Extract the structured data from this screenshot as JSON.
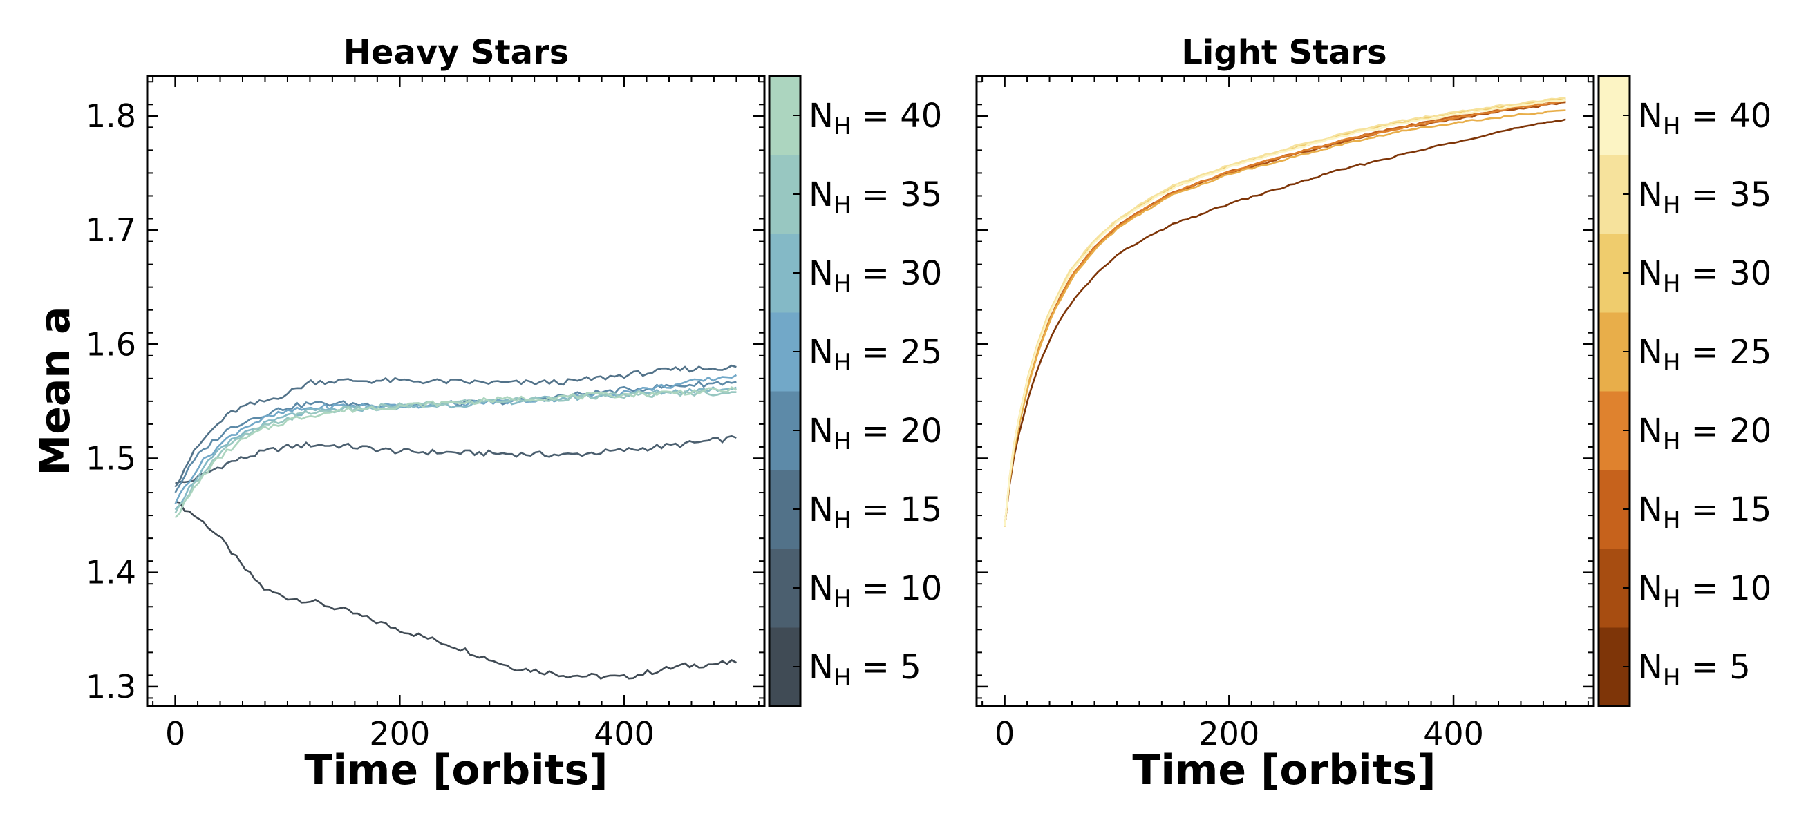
{
  "chart_data": [
    {
      "type": "line",
      "title": "Heavy Stars",
      "xlabel": "Time [orbits]",
      "ylabel": "Mean a",
      "xlim": [
        -25,
        525
      ],
      "ylim": [
        1.283,
        1.835
      ],
      "xticks": [
        0,
        200,
        400
      ],
      "yticks": [
        1.3,
        1.4,
        1.5,
        1.6,
        1.7,
        1.8
      ],
      "ytick_labels": [
        "1.3",
        "1.4",
        "1.5",
        "1.6",
        "1.7",
        "1.8"
      ],
      "x": [
        0,
        10,
        20,
        30,
        40,
        50,
        60,
        80,
        100,
        120,
        150,
        200,
        250,
        300,
        350,
        400,
        450,
        500
      ],
      "series": [
        {
          "name": "N_H = 5",
          "color": "#404b55",
          "values": [
            1.462,
            1.455,
            1.448,
            1.44,
            1.43,
            1.418,
            1.405,
            1.385,
            1.378,
            1.375,
            1.367,
            1.35,
            1.335,
            1.317,
            1.31,
            1.308,
            1.318,
            1.321
          ]
        },
        {
          "name": "N_H = 10",
          "color": "#4b5f6f",
          "values": [
            1.478,
            1.479,
            1.483,
            1.488,
            1.493,
            1.497,
            1.5,
            1.506,
            1.51,
            1.512,
            1.511,
            1.506,
            1.505,
            1.504,
            1.503,
            1.507,
            1.512,
            1.518
          ]
        },
        {
          "name": "N_H = 15",
          "color": "#527289",
          "values": [
            1.475,
            1.495,
            1.51,
            1.522,
            1.532,
            1.54,
            1.545,
            1.55,
            1.557,
            1.567,
            1.568,
            1.568,
            1.567,
            1.566,
            1.567,
            1.573,
            1.578,
            1.58
          ]
        },
        {
          "name": "N_H = 20",
          "color": "#5d8aa8",
          "values": [
            1.47,
            1.488,
            1.502,
            1.512,
            1.52,
            1.527,
            1.532,
            1.539,
            1.545,
            1.548,
            1.548,
            1.546,
            1.548,
            1.55,
            1.555,
            1.56,
            1.564,
            1.567
          ]
        },
        {
          "name": "N_H = 25",
          "color": "#72a8c8",
          "values": [
            1.46,
            1.478,
            1.492,
            1.503,
            1.512,
            1.52,
            1.527,
            1.535,
            1.541,
            1.544,
            1.546,
            1.546,
            1.548,
            1.55,
            1.553,
            1.558,
            1.565,
            1.573
          ]
        },
        {
          "name": "N_H = 30",
          "color": "#84b9c6",
          "values": [
            1.455,
            1.47,
            1.485,
            1.497,
            1.507,
            1.515,
            1.522,
            1.53,
            1.537,
            1.541,
            1.543,
            1.545,
            1.547,
            1.55,
            1.553,
            1.556,
            1.559,
            1.562
          ]
        },
        {
          "name": "N_H = 35",
          "color": "#98c7c1",
          "values": [
            1.452,
            1.467,
            1.482,
            1.494,
            1.504,
            1.512,
            1.519,
            1.528,
            1.535,
            1.54,
            1.543,
            1.546,
            1.549,
            1.551,
            1.553,
            1.555,
            1.557,
            1.558
          ]
        },
        {
          "name": "N_H = 40",
          "color": "#acd5bf",
          "values": [
            1.448,
            1.463,
            1.478,
            1.491,
            1.501,
            1.509,
            1.516,
            1.526,
            1.533,
            1.538,
            1.542,
            1.546,
            1.549,
            1.552,
            1.554,
            1.556,
            1.558,
            1.56
          ]
        }
      ],
      "colorbar": {
        "labels": [
          "N_H = 5",
          "N_H = 10",
          "N_H = 15",
          "N_H = 20",
          "N_H = 25",
          "N_H = 30",
          "N_H = 35",
          "N_H = 40"
        ],
        "colors": [
          "#404b55",
          "#4b5f6f",
          "#527289",
          "#5d8aa8",
          "#72a8c8",
          "#84b9c6",
          "#98c7c1",
          "#acd5bf"
        ]
      }
    },
    {
      "type": "line",
      "title": "Light Stars",
      "xlabel": "Time [orbits]",
      "xlim": [
        -25,
        525
      ],
      "ylim": [
        1.283,
        1.835
      ],
      "xticks": [
        0,
        200,
        400
      ],
      "yticks": [
        1.3,
        1.4,
        1.5,
        1.6,
        1.7,
        1.8
      ],
      "ytick_labels": [],
      "x": [
        0,
        5,
        10,
        20,
        30,
        40,
        50,
        60,
        80,
        100,
        120,
        150,
        200,
        250,
        300,
        350,
        400,
        450,
        500
      ],
      "series": [
        {
          "name": "N_H = 5",
          "color": "#7e3508",
          "values": [
            1.44,
            1.482,
            1.51,
            1.55,
            1.58,
            1.604,
            1.622,
            1.637,
            1.66,
            1.678,
            1.69,
            1.705,
            1.723,
            1.738,
            1.753,
            1.765,
            1.777,
            1.788,
            1.797
          ]
        },
        {
          "name": "N_H = 10",
          "color": "#a74d11",
          "values": [
            1.44,
            1.487,
            1.518,
            1.562,
            1.596,
            1.622,
            1.642,
            1.66,
            1.685,
            1.703,
            1.716,
            1.732,
            1.75,
            1.764,
            1.777,
            1.789,
            1.797,
            1.805,
            1.812
          ]
        },
        {
          "name": "N_H = 15",
          "color": "#c6621c",
          "values": [
            1.44,
            1.487,
            1.518,
            1.562,
            1.596,
            1.622,
            1.642,
            1.66,
            1.685,
            1.703,
            1.716,
            1.733,
            1.751,
            1.765,
            1.778,
            1.79,
            1.799,
            1.807,
            1.814
          ]
        },
        {
          "name": "N_H = 20",
          "color": "#df822e",
          "values": [
            1.44,
            1.487,
            1.518,
            1.562,
            1.596,
            1.622,
            1.642,
            1.66,
            1.685,
            1.703,
            1.716,
            1.733,
            1.751,
            1.765,
            1.778,
            1.789,
            1.798,
            1.806,
            1.813
          ]
        },
        {
          "name": "N_H = 25",
          "color": "#e8ae4a",
          "values": [
            1.44,
            1.485,
            1.516,
            1.56,
            1.594,
            1.62,
            1.64,
            1.658,
            1.683,
            1.701,
            1.714,
            1.731,
            1.749,
            1.762,
            1.775,
            1.786,
            1.794,
            1.8,
            1.805
          ]
        },
        {
          "name": "N_H = 30",
          "color": "#efcc6d",
          "values": [
            1.44,
            1.49,
            1.522,
            1.567,
            1.602,
            1.628,
            1.648,
            1.666,
            1.69,
            1.708,
            1.721,
            1.738,
            1.756,
            1.77,
            1.783,
            1.794,
            1.802,
            1.809,
            1.815
          ]
        },
        {
          "name": "N_H = 35",
          "color": "#f6e29c",
          "values": [
            1.44,
            1.491,
            1.523,
            1.569,
            1.603,
            1.629,
            1.649,
            1.667,
            1.691,
            1.709,
            1.722,
            1.739,
            1.757,
            1.771,
            1.784,
            1.795,
            1.803,
            1.81,
            1.816
          ]
        },
        {
          "name": "N_H = 40",
          "color": "#fcf4c4",
          "values": [
            1.44,
            1.489,
            1.521,
            1.566,
            1.6,
            1.626,
            1.646,
            1.664,
            1.689,
            1.707,
            1.72,
            1.737,
            1.755,
            1.769,
            1.782,
            1.793,
            1.801,
            1.808,
            1.814
          ]
        }
      ],
      "colorbar": {
        "labels": [
          "N_H = 5",
          "N_H = 10",
          "N_H = 15",
          "N_H = 20",
          "N_H = 25",
          "N_H = 30",
          "N_H = 35",
          "N_H = 40"
        ],
        "colors": [
          "#7e3508",
          "#a74d11",
          "#c6621c",
          "#df822e",
          "#e8ae4a",
          "#efcc6d",
          "#f6e29c",
          "#fcf4c4"
        ]
      }
    }
  ]
}
